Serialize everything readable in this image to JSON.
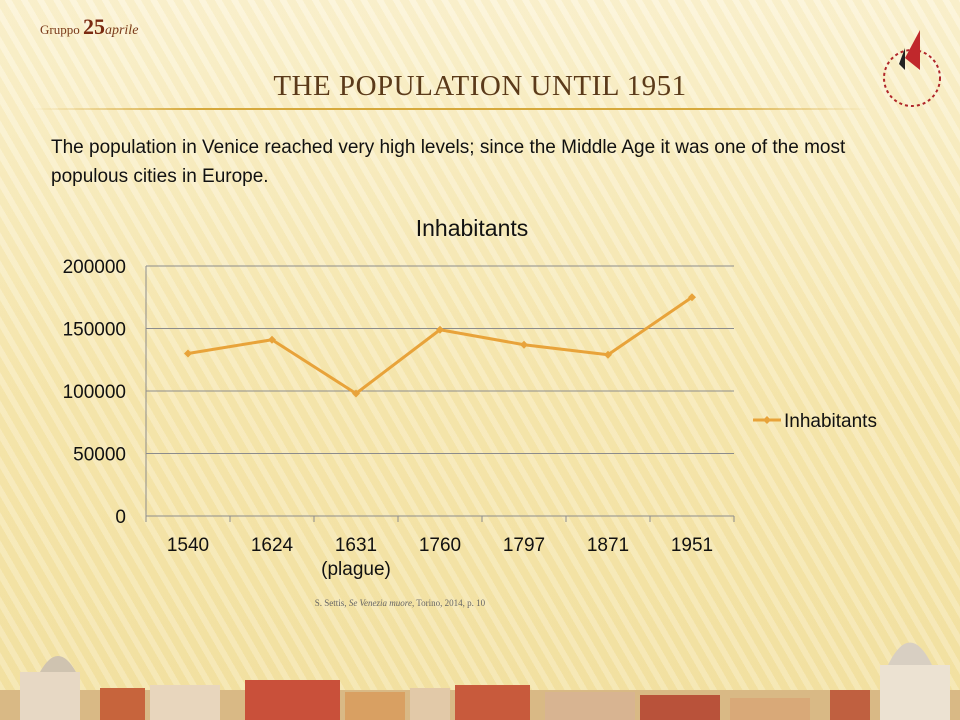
{
  "header": {
    "group_prefix": "Gruppo",
    "group_number": "25",
    "group_suffix": "aprile"
  },
  "slide_title": "THE POPULATION UNTIL 1951",
  "intro": "The population in Venice reached very high levels; since the Middle Age it was one of the most populous cities in Europe.",
  "chart_data": {
    "type": "line",
    "title": "Inhabitants",
    "categories": [
      "1540",
      "1624",
      "1631\n(plague)",
      "1760",
      "1797",
      "1871",
      "1951"
    ],
    "series": [
      {
        "name": "Inhabitants",
        "color": "#e8a33a",
        "values": [
          130000,
          141000,
          98000,
          149000,
          137000,
          129000,
          175000
        ]
      }
    ],
    "ylim": [
      0,
      200000
    ],
    "yticks": [
      0,
      50000,
      100000,
      150000,
      200000
    ],
    "grid": true,
    "legend": "right"
  },
  "source": {
    "author": "S. Settis, ",
    "book": "Se Venezia muore",
    "rest": ", Torino, 2014, p. 10"
  }
}
